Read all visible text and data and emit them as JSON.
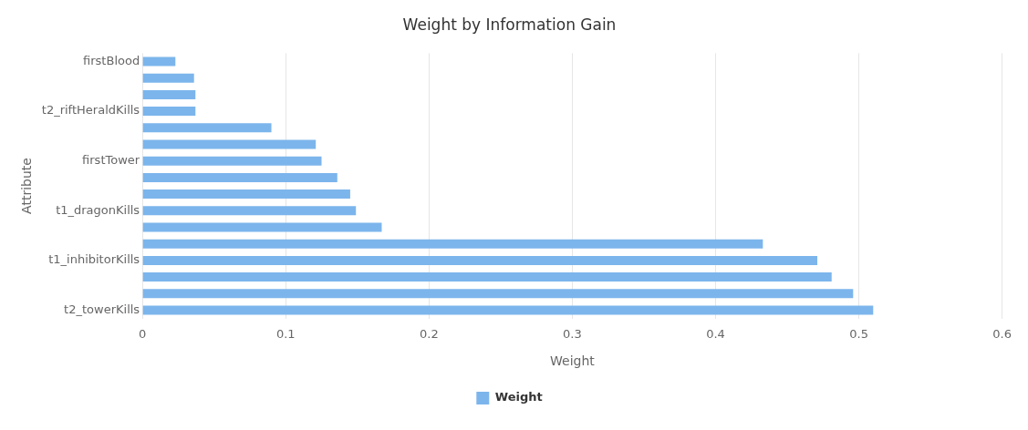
{
  "chart_data": {
    "type": "bar",
    "orientation": "horizontal",
    "title": "Weight by Information Gain",
    "xlabel": "Weight",
    "ylabel": "Attribute",
    "categories": [
      "firstBlood",
      null,
      null,
      "t2_riftHeraldKills",
      null,
      null,
      "firstTower",
      null,
      null,
      "t1_dragonKills",
      null,
      null,
      "t1_inhibitorKills",
      null,
      null,
      "t2_towerKills"
    ],
    "series": [
      {
        "name": "Weight",
        "color": "#7cb5ec",
        "values": [
          0.023,
          0.036,
          0.037,
          0.037,
          0.09,
          0.121,
          0.125,
          0.136,
          0.145,
          0.149,
          0.167,
          0.433,
          0.471,
          0.481,
          0.496,
          0.51
        ]
      }
    ],
    "xlim": [
      0,
      0.6
    ],
    "xticks": [
      0,
      0.1,
      0.2,
      0.3,
      0.4,
      0.5,
      0.6
    ],
    "grid": "x",
    "legend": "bottom"
  }
}
